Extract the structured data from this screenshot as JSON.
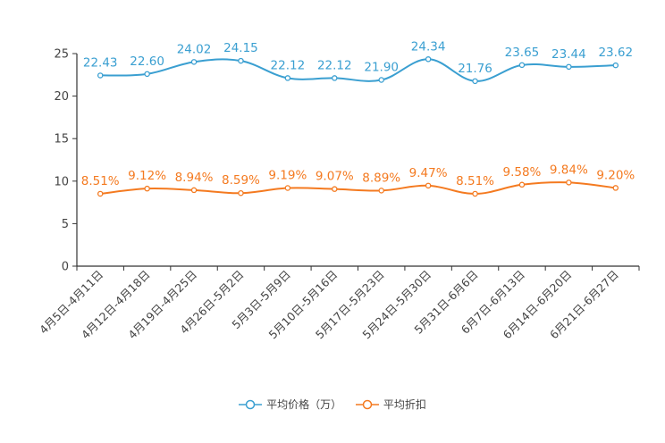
{
  "chart_data": {
    "type": "line",
    "categories": [
      "4月5日-4月11日",
      "4月12日-4月18日",
      "4月19日-4月25日",
      "4月26日-5月2日",
      "5月3日-5月9日",
      "5月10日-5月16日",
      "5月17日-5月23日",
      "5月24日-5月30日",
      "5月31日-6月6日",
      "6月7日-6月13日",
      "6月14日-6月20日",
      "6月21日-6月27日"
    ],
    "ylim": [
      0,
      25
    ],
    "yticks": [
      0,
      5,
      10,
      15,
      20,
      25
    ],
    "series": [
      {
        "name": "平均价格（万）",
        "color": "#3a9fd1",
        "values": [
          22.43,
          22.6,
          24.02,
          24.15,
          22.12,
          22.12,
          21.9,
          24.34,
          21.76,
          23.65,
          23.44,
          23.62
        ],
        "labels": [
          "22.43",
          "22.60",
          "24.02",
          "24.15",
          "22.12",
          "22.12",
          "21.90",
          "24.34",
          "21.76",
          "23.65",
          "23.44",
          "23.62"
        ]
      },
      {
        "name": "平均折扣",
        "color": "#f47a20",
        "values": [
          8.51,
          9.12,
          8.94,
          8.59,
          9.19,
          9.07,
          8.89,
          9.47,
          8.51,
          9.58,
          9.84,
          9.2
        ],
        "labels": [
          "8.51%",
          "9.12%",
          "8.94%",
          "8.59%",
          "9.19%",
          "9.07%",
          "8.89%",
          "9.47%",
          "8.51%",
          "9.58%",
          "9.84%",
          "9.20%"
        ]
      }
    ],
    "legend": [
      "平均价格（万）",
      "平均折扣"
    ],
    "legend_position": "bottom-center",
    "grid": false
  }
}
